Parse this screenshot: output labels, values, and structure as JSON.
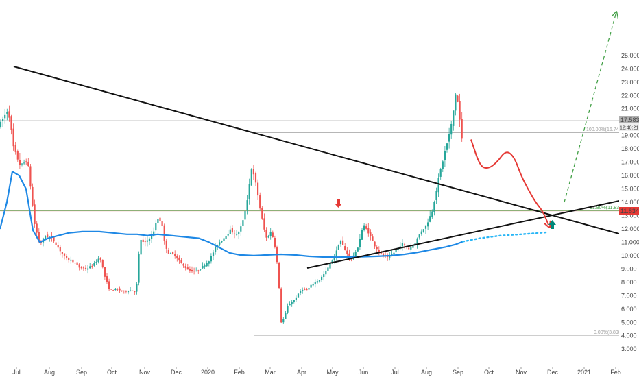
{
  "chart_data": {
    "type": "candlestick",
    "price_axis": {
      "ticks": [
        "3.000",
        "4.000",
        "5.000",
        "6.000",
        "7.000",
        "8.000",
        "9.000",
        "10.000",
        "11.000",
        "12.000",
        "13.000",
        "14.000",
        "15.000",
        "16.000",
        "17.000",
        "18.000",
        "19.000",
        "20.000",
        "21.000",
        "22.000",
        "23.000",
        "24.000",
        "25.000"
      ],
      "ylim": [
        2.2,
        25.3
      ]
    },
    "time_axis": {
      "ticks": [
        "Jul",
        "Aug",
        "Sep",
        "Oct",
        "Nov",
        "Dec",
        "2020",
        "Feb",
        "Mar",
        "Apr",
        "May",
        "Jun",
        "Jul",
        "Aug",
        "Sep",
        "Oct",
        "Nov",
        "Dec",
        "2021",
        "Feb"
      ]
    },
    "price_labels": {
      "current_price": "17.583",
      "countdown": "12:40:21",
      "horizontal_level": "11.834"
    },
    "fib_labels": {
      "level_100": "100.00%(16.745)",
      "level_618": "61.80%(11.831)",
      "level_0": "0.00%(3.890)"
    },
    "series": [
      {
        "values": [
          [
            0,
            12.0
          ],
          [
            10,
            14.0
          ],
          [
            18,
            16.3
          ],
          [
            28,
            16.0
          ],
          [
            38,
            15.0
          ],
          [
            48,
            11.9
          ],
          [
            58,
            11.0
          ],
          [
            70,
            11.3
          ],
          [
            85,
            11.5
          ],
          [
            100,
            11.7
          ],
          [
            120,
            11.8
          ],
          [
            145,
            11.8
          ],
          [
            165,
            11.7
          ],
          [
            185,
            11.6
          ],
          [
            200,
            11.6
          ],
          [
            215,
            11.5
          ],
          [
            230,
            11.6
          ],
          [
            250,
            11.5
          ],
          [
            270,
            11.4
          ],
          [
            290,
            11.3
          ],
          [
            305,
            11.0
          ],
          [
            320,
            10.6
          ],
          [
            335,
            10.2
          ],
          [
            350,
            10.05
          ],
          [
            370,
            10.0
          ],
          [
            390,
            10.05
          ],
          [
            410,
            10.1
          ],
          [
            430,
            10.05
          ],
          [
            450,
            9.95
          ],
          [
            470,
            9.9
          ],
          [
            490,
            9.88
          ],
          [
            510,
            9.9
          ],
          [
            530,
            9.92
          ],
          [
            550,
            9.95
          ],
          [
            570,
            10.0
          ],
          [
            590,
            10.1
          ],
          [
            610,
            10.25
          ],
          [
            630,
            10.45
          ],
          [
            650,
            10.65
          ],
          [
            665,
            10.85
          ],
          [
            675,
            11.05
          ]
        ]
      },
      {
        "values": [
          [
            675,
            11.05
          ],
          [
            700,
            11.3
          ],
          [
            730,
            11.5
          ],
          [
            760,
            11.6
          ],
          [
            800,
            11.75
          ]
        ]
      },
      {
        "values": [
          [
            0,
            19.8
          ],
          [
            12,
            21.0
          ],
          [
            20,
            18.0
          ],
          [
            30,
            16.7
          ],
          [
            40,
            17.2
          ],
          [
            46,
            14.5
          ],
          [
            50,
            12.5
          ],
          [
            58,
            10.8
          ],
          [
            66,
            11.5
          ],
          [
            76,
            11.3
          ],
          [
            86,
            10.5
          ],
          [
            96,
            9.8
          ],
          [
            106,
            9.6
          ],
          [
            116,
            9.1
          ],
          [
            126,
            9.0
          ],
          [
            136,
            9.3
          ],
          [
            146,
            9.9
          ],
          [
            153,
            8.4
          ],
          [
            160,
            7.4
          ],
          [
            170,
            7.5
          ],
          [
            180,
            7.3
          ],
          [
            190,
            7.4
          ],
          [
            197,
            7.3
          ],
          [
            200,
            8.0
          ],
          [
            204,
            11.3
          ],
          [
            210,
            10.9
          ],
          [
            222,
            11.5
          ],
          [
            230,
            12.8
          ],
          [
            236,
            12.5
          ],
          [
            240,
            10.9
          ],
          [
            246,
            10.2
          ],
          [
            256,
            10.0
          ],
          [
            266,
            9.3
          ],
          [
            276,
            8.9
          ],
          [
            286,
            8.8
          ],
          [
            296,
            9.2
          ],
          [
            306,
            9.7
          ],
          [
            316,
            10.8
          ],
          [
            326,
            11.3
          ],
          [
            336,
            11.9
          ],
          [
            346,
            11.5
          ],
          [
            354,
            12.5
          ],
          [
            360,
            14.0
          ],
          [
            367,
            16.6
          ],
          [
            374,
            15.2
          ],
          [
            380,
            13.3
          ],
          [
            388,
            11.3
          ],
          [
            396,
            11.8
          ],
          [
            402,
            10.5
          ],
          [
            406,
            8.5
          ],
          [
            410,
            5.0
          ],
          [
            414,
            5.3
          ],
          [
            420,
            6.3
          ],
          [
            430,
            6.7
          ],
          [
            440,
            7.5
          ],
          [
            448,
            7.4
          ],
          [
            456,
            7.9
          ],
          [
            466,
            8.2
          ],
          [
            474,
            8.7
          ],
          [
            482,
            9.4
          ],
          [
            490,
            10.2
          ],
          [
            496,
            11.2
          ],
          [
            504,
            10.3
          ],
          [
            512,
            9.8
          ],
          [
            520,
            10.3
          ],
          [
            530,
            12.3
          ],
          [
            538,
            11.7
          ],
          [
            546,
            10.8
          ],
          [
            556,
            10.1
          ],
          [
            566,
            9.8
          ],
          [
            576,
            10.3
          ],
          [
            586,
            10.9
          ],
          [
            596,
            10.5
          ],
          [
            606,
            11.0
          ],
          [
            614,
            11.8
          ],
          [
            622,
            12.3
          ],
          [
            630,
            13.3
          ],
          [
            636,
            14.8
          ],
          [
            642,
            16.3
          ],
          [
            648,
            17.6
          ],
          [
            654,
            18.8
          ],
          [
            660,
            20.2
          ],
          [
            664,
            22.2
          ],
          [
            668,
            21.4
          ],
          [
            672,
            19.5
          ],
          [
            676,
            17.6
          ]
        ]
      },
      {
        "values": [
          [
            687,
            18.7
          ],
          [
            700,
            16.7
          ],
          [
            712,
            16.5
          ],
          [
            725,
            17.0
          ],
          [
            738,
            17.9
          ],
          [
            750,
            17.4
          ],
          [
            760,
            16.0
          ],
          [
            770,
            15.0
          ],
          [
            781,
            14.0
          ],
          [
            792,
            13.3
          ],
          [
            800,
            12.3
          ]
        ]
      }
    ]
  }
}
